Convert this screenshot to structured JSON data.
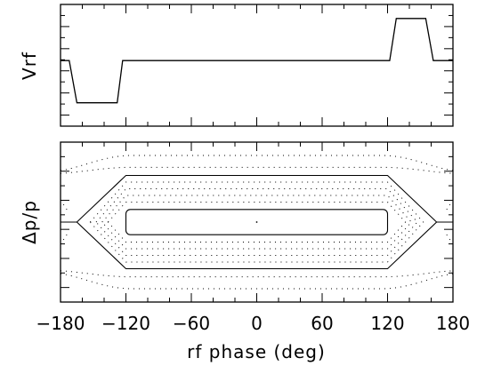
{
  "chart_data": [
    {
      "type": "line",
      "panel": "top",
      "ylabel": "Vrf",
      "xlim": [
        -180,
        180
      ],
      "ylim": [
        -1.4,
        1.2
      ],
      "grid": false,
      "series": [
        {
          "x": [
            -180,
            -172,
            -165,
            -128,
            -123,
            122,
            128,
            155,
            162,
            170,
            180
          ],
          "y": [
            0,
            0,
            -0.9,
            -0.9,
            0,
            0,
            0.9,
            0.9,
            0,
            0,
            0
          ]
        }
      ]
    },
    {
      "type": "line",
      "panel": "bottom",
      "ylabel": "Δp/p",
      "xlabel": "rf phase (deg)",
      "xlim": [
        -180,
        180
      ],
      "ylim": [
        -1.08,
        1.08
      ],
      "grid": false,
      "xticks": [
        "−180",
        "−120",
        "−60",
        "0",
        "60",
        "120",
        "180"
      ],
      "x_tick_values": [
        -180,
        -120,
        -60,
        0,
        60,
        120,
        180
      ],
      "separatrix": {
        "half_height": 0.63,
        "flat_until": 120,
        "bucket_edge": 165,
        "extent": 180
      },
      "inner_contour": {
        "half_height": 0.17,
        "x_end": 120
      },
      "dotted_contours_inside": [
        0.27,
        0.36,
        0.45,
        0.54
      ],
      "dotted_contours_outside": [
        0.74,
        0.9
      ],
      "center_point": [
        0,
        0
      ]
    }
  ],
  "labels": {
    "top_ylabel": "Vrf",
    "bottom_ylabel": "Δp/p",
    "xlabel": "rf phase (deg)"
  }
}
